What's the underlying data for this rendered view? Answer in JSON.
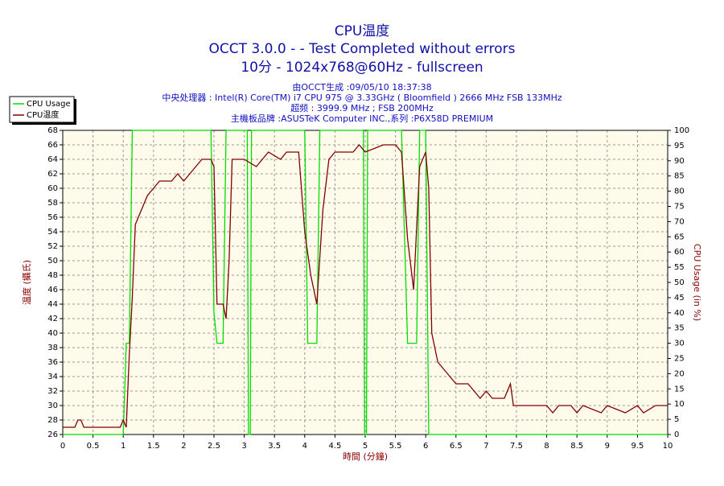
{
  "chart_data": {
    "type": "line",
    "title": "CPU温度",
    "subtitle": [
      "OCCT 3.0.0 -  - Test Completed without errors",
      "10分 - 1024x768@60Hz - fullscreen"
    ],
    "info": [
      "由OCCT生成 :09/05/10 18:37:38",
      "中央处理器 : Intel(R) Core(TM) i7 CPU 975 @ 3.33GHz ( Bloomfield ) 2666 MHz FSB 133MHz",
      "超频 : 3999.9 MHz ; FSB 200MHz",
      "主機板品牌 :ASUSTeK Computer INC.,系列 :P6X58D PREMIUM"
    ],
    "xlabel": "時間 (分鐘)",
    "ylabel": "温度 (攝氏)",
    "y2label": "CPU Usage (in %)",
    "xlim": [
      0,
      10
    ],
    "xticks": [
      0,
      0.5,
      1,
      1.5,
      2,
      2.5,
      3,
      3.5,
      4,
      4.5,
      5,
      5.5,
      6,
      6.5,
      7,
      7.5,
      8,
      8.5,
      9,
      9.5,
      10
    ],
    "ylim": [
      26,
      68
    ],
    "yticks": [
      26,
      28,
      30,
      32,
      34,
      36,
      38,
      40,
      42,
      44,
      46,
      48,
      50,
      52,
      54,
      56,
      58,
      60,
      62,
      64,
      66,
      68
    ],
    "y2lim": [
      0,
      100
    ],
    "y2ticks": [
      0,
      5,
      10,
      15,
      20,
      25,
      30,
      35,
      40,
      45,
      50,
      55,
      60,
      65,
      70,
      75,
      80,
      85,
      90,
      95,
      100
    ],
    "grid": true,
    "legend": "top-left",
    "series": [
      {
        "name": "CPU Usage",
        "color": "#00dd00",
        "axis": "y2",
        "x": [
          0,
          1.0,
          1.05,
          1.1,
          1.15,
          2.45,
          2.5,
          2.55,
          2.65,
          2.7,
          3.05,
          3.07,
          3.1,
          3.12,
          4.0,
          4.05,
          4.2,
          4.25,
          4.97,
          4.99,
          5.02,
          5.04,
          5.6,
          5.7,
          5.85,
          5.9,
          6.0,
          6.05,
          10
        ],
        "values": [
          0,
          0,
          30,
          30,
          100,
          100,
          40,
          30,
          30,
          100,
          100,
          0,
          0,
          100,
          100,
          30,
          30,
          100,
          100,
          0,
          0,
          100,
          100,
          30,
          30,
          100,
          100,
          0,
          0
        ]
      },
      {
        "name": "CPU温度",
        "color": "#800000",
        "x": [
          0,
          0.2,
          0.25,
          0.3,
          0.35,
          0.95,
          1.0,
          1.05,
          1.1,
          1.15,
          1.2,
          1.3,
          1.4,
          1.5,
          1.6,
          1.8,
          1.9,
          2.0,
          2.1,
          2.2,
          2.3,
          2.45,
          2.5,
          2.55,
          2.65,
          2.7,
          2.75,
          2.8,
          3.0,
          3.2,
          3.3,
          3.4,
          3.6,
          3.7,
          3.9,
          4.0,
          4.1,
          4.2,
          4.3,
          4.4,
          4.5,
          4.8,
          4.9,
          5.0,
          5.3,
          5.5,
          5.6,
          5.7,
          5.8,
          5.9,
          6.0,
          6.05,
          6.1,
          6.2,
          6.3,
          6.4,
          6.5,
          6.7,
          6.8,
          6.9,
          7.0,
          7.1,
          7.3,
          7.35,
          7.4,
          7.45,
          7.6,
          8.0,
          8.1,
          8.2,
          8.4,
          8.5,
          8.6,
          8.9,
          9.0,
          9.3,
          9.5,
          9.6,
          9.8,
          10
        ],
        "values": [
          27,
          27,
          28,
          28,
          27,
          27,
          28,
          27,
          37,
          45,
          55,
          57,
          59,
          60,
          61,
          61,
          62,
          61,
          62,
          63,
          64,
          64,
          63,
          44,
          44,
          42,
          50,
          64,
          64,
          63,
          64,
          65,
          64,
          65,
          65,
          54,
          48,
          44,
          57,
          64,
          65,
          65,
          66,
          65,
          66,
          66,
          65,
          53,
          46,
          63,
          65,
          60,
          40,
          36,
          35,
          34,
          33,
          33,
          32,
          31,
          32,
          31,
          31,
          32,
          33,
          30,
          30,
          30,
          29,
          30,
          30,
          29,
          30,
          29,
          30,
          29,
          30,
          29,
          30,
          30
        ]
      }
    ]
  }
}
